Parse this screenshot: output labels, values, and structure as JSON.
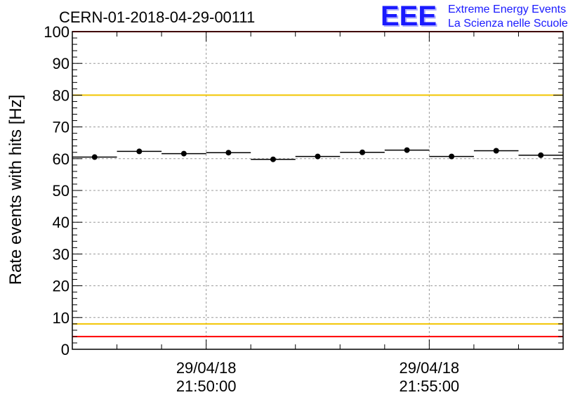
{
  "chart_data": {
    "type": "scatter",
    "title": "CERN-01-2018-04-29-00111",
    "ylabel": "Rate events with hits [Hz]",
    "xlabel": "",
    "ylim": [
      0,
      100
    ],
    "yticks": [
      "0",
      "10",
      "20",
      "30",
      "40",
      "50",
      "60",
      "70",
      "80",
      "90",
      "100"
    ],
    "xlim_minutes": [
      -3,
      8.0
    ],
    "x_tick_labels": [
      {
        "date": "29/04/18",
        "time": "21:50:00",
        "minute": 0
      },
      {
        "date": "29/04/18",
        "time": "21:55:00",
        "minute": 5
      }
    ],
    "grid": true,
    "series": [
      {
        "x_minutes": [
          -2.5,
          -1.5,
          -0.5,
          0.5,
          1.5,
          2.5,
          3.5,
          4.5,
          5.5,
          6.5,
          7.5
        ],
        "values": [
          60.5,
          62.3,
          61.6,
          61.9,
          59.8,
          60.7,
          62.0,
          62.7,
          60.7,
          62.5,
          61.1
        ],
        "errors": [
          0.6,
          0.6,
          0.6,
          0.6,
          0.6,
          0.6,
          0.6,
          0.6,
          0.6,
          0.6,
          0.6
        ],
        "bin_half_width_minutes": 0.5
      }
    ],
    "reference_lines": [
      {
        "value": 100,
        "color": "#ff0000"
      },
      {
        "value": 80,
        "color": "#f2c500"
      },
      {
        "value": 8,
        "color": "#f2c500"
      },
      {
        "value": 4,
        "color": "#ff0000"
      }
    ]
  },
  "logo": {
    "mark": "EEE",
    "line1": "Extreme Energy Events",
    "line2": "La Scienza nelle Scuole",
    "color": "#1a1aff"
  }
}
